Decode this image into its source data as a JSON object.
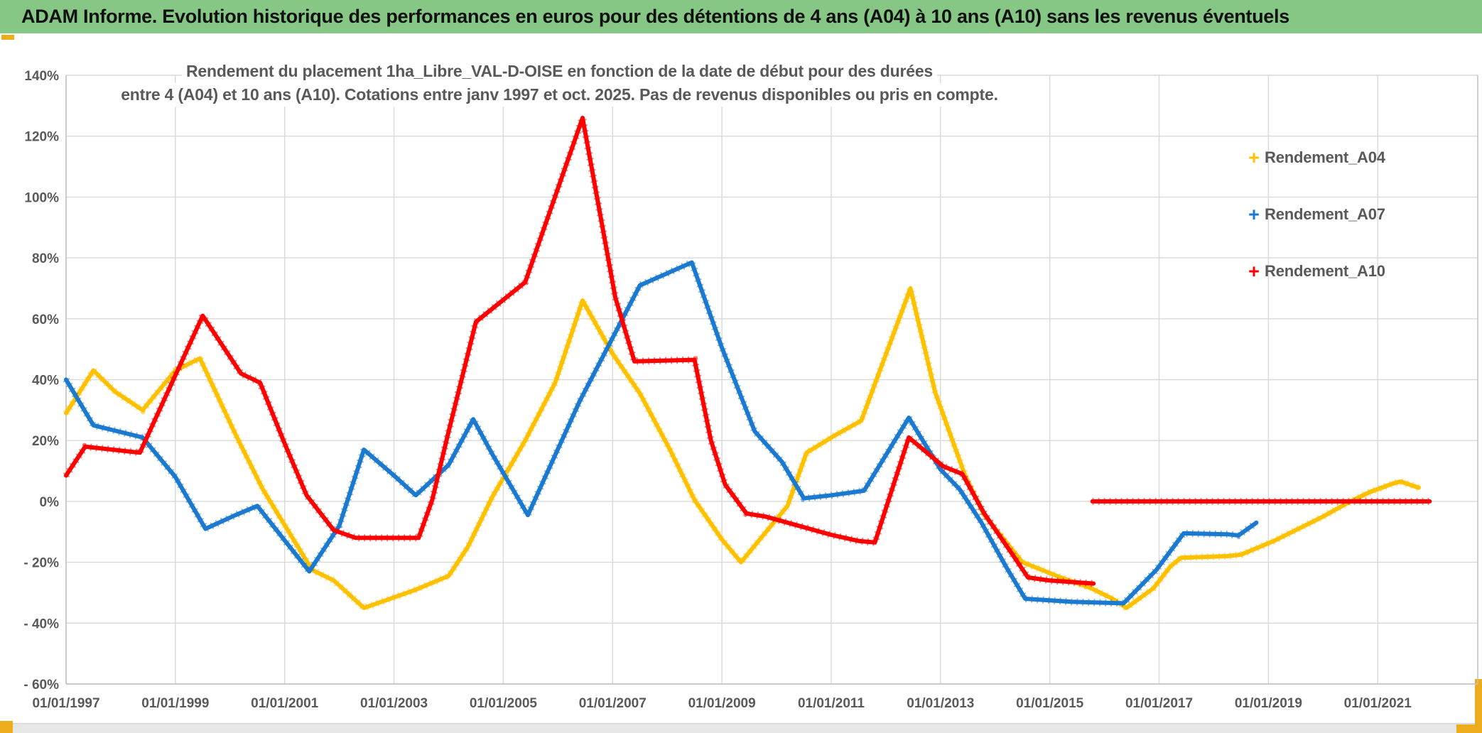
{
  "header": {
    "title": "ADAM Informe. Evolution historique des performances en euros pour des détentions de 4 ans (A04) à 10 ans (A10) sans les revenus éventuels"
  },
  "chart": {
    "title_line1": "Rendement du placement 1ha_Libre_VAL-D-OISE en fonction de la date de début pour des durées",
    "title_line2": "entre 4 (A04) et 10 ans (A10). Cotations entre janv 1997 et oct. 2025. Pas de revenus disponibles ou pris en compte."
  },
  "colors": {
    "header_green": "#86C786",
    "accent_gold": "#ECAC1C",
    "grid": "#D9D9D9",
    "axis": "#BFBFBF",
    "text_gray": "#595959",
    "series_a04": "#FFC000",
    "series_a07": "#1B7AD0",
    "series_a10": "#FF0000"
  },
  "chart_data": {
    "type": "line",
    "title": "Rendement du placement 1ha_Libre_VAL-D-OISE en fonction de la date de début pour des durées entre 4 (A04) et 10 ans (A10). Cotations entre janv 1997 et oct. 2025. Pas de revenus disponibles ou pris en compte.",
    "grid": true,
    "legend_position": "right",
    "x_axis": {
      "range": [
        1997.0,
        2022.83
      ],
      "tick_years": [
        1997,
        1999,
        2001,
        2003,
        2005,
        2007,
        2009,
        2011,
        2013,
        2015,
        2017,
        2019,
        2021
      ],
      "ticks": [
        "01/01/1997",
        "01/01/1999",
        "01/01/2001",
        "01/01/2003",
        "01/01/2005",
        "01/01/2007",
        "01/01/2009",
        "01/01/2011",
        "01/01/2013",
        "01/01/2015",
        "01/01/2017",
        "01/01/2019",
        "01/01/2021"
      ]
    },
    "y_axis": {
      "unit": "%",
      "range": [
        -60,
        140
      ],
      "values": [
        140,
        120,
        100,
        80,
        60,
        40,
        20,
        0,
        -20,
        -40,
        -60
      ],
      "ticks": [
        "140%",
        "120%",
        "100%",
        "80%",
        "60%",
        "40%",
        "20%",
        "0%",
        "- 20%",
        "- 40%",
        "- 60%"
      ]
    },
    "series": [
      {
        "name": "Rendement_A04",
        "color": "#FFC000",
        "marker": "+",
        "segments": [
          [
            [
              1997.0,
              29
            ],
            [
              1997.5,
              43
            ],
            [
              1997.9,
              36
            ],
            [
              1998.4,
              30
            ],
            [
              1999.0,
              43
            ],
            [
              1999.45,
              47
            ],
            [
              2000.1,
              22
            ],
            [
              2000.6,
              4
            ],
            [
              2001.5,
              -22.5
            ],
            [
              2001.9,
              -26
            ],
            [
              2002.45,
              -35
            ],
            [
              2002.85,
              -32.5
            ],
            [
              2003.4,
              -29
            ],
            [
              2004.0,
              -24.5
            ],
            [
              2004.35,
              -15
            ],
            [
              2004.8,
              1.5
            ],
            [
              2005.4,
              20
            ],
            [
              2005.95,
              39
            ],
            [
              2006.45,
              66
            ],
            [
              2007.0,
              48.5
            ],
            [
              2007.5,
              35.5
            ],
            [
              2008.05,
              17
            ],
            [
              2008.5,
              0.5
            ],
            [
              2009.0,
              -12.5
            ],
            [
              2009.35,
              -20
            ],
            [
              2010.2,
              -1.5
            ],
            [
              2010.55,
              16
            ],
            [
              2011.05,
              21.5
            ],
            [
              2011.55,
              26.5
            ],
            [
              2012.45,
              70
            ],
            [
              2012.9,
              36
            ],
            [
              2013.45,
              8.5
            ],
            [
              2013.8,
              -4.5
            ],
            [
              2014.5,
              -20
            ],
            [
              2015.2,
              -25
            ],
            [
              2015.75,
              -28.5
            ],
            [
              2016.15,
              -32
            ],
            [
              2016.4,
              -35
            ],
            [
              2016.9,
              -28.5
            ],
            [
              2017.2,
              -21.5
            ],
            [
              2017.4,
              -18.5
            ],
            [
              2018.25,
              -18
            ],
            [
              2018.5,
              -17.5
            ],
            [
              2019.1,
              -13
            ],
            [
              2020.0,
              -5
            ],
            [
              2020.5,
              0
            ],
            [
              2020.85,
              3
            ],
            [
              2021.3,
              6
            ],
            [
              2021.42,
              6.5
            ],
            [
              2021.75,
              4.5
            ]
          ]
        ]
      },
      {
        "name": "Rendement_A07",
        "color": "#1B7AD0",
        "marker": "+",
        "segments": [
          [
            [
              1997.0,
              40
            ],
            [
              1997.5,
              25
            ],
            [
              1998.4,
              21
            ],
            [
              1999.0,
              8
            ],
            [
              1999.55,
              -9
            ],
            [
              2000.1,
              -4.5
            ],
            [
              2000.5,
              -1.5
            ],
            [
              2001.45,
              -23
            ],
            [
              2002.0,
              -8
            ],
            [
              2002.45,
              17
            ],
            [
              2003.0,
              8.5
            ],
            [
              2003.4,
              2
            ],
            [
              2004.0,
              12
            ],
            [
              2004.45,
              27
            ],
            [
              2004.8,
              15.5
            ],
            [
              2005.45,
              -4.5
            ],
            [
              2006.4,
              33
            ],
            [
              2007.5,
              71
            ],
            [
              2008.45,
              78.5
            ],
            [
              2009.0,
              50.5
            ],
            [
              2009.6,
              23
            ],
            [
              2010.1,
              13
            ],
            [
              2010.5,
              1
            ],
            [
              2011.0,
              2
            ],
            [
              2011.6,
              3.5
            ],
            [
              2012.42,
              27.5
            ],
            [
              2013.0,
              10.5
            ],
            [
              2013.35,
              4
            ],
            [
              2013.75,
              -7
            ],
            [
              2014.2,
              -21.5
            ],
            [
              2014.55,
              -32
            ],
            [
              2015.4,
              -33
            ],
            [
              2016.35,
              -33.5
            ],
            [
              2016.95,
              -22.5
            ],
            [
              2017.45,
              -10.5
            ],
            [
              2018.25,
              -10.8
            ],
            [
              2018.45,
              -11.2
            ],
            [
              2018.78,
              -7
            ]
          ]
        ]
      },
      {
        "name": "Rendement_A10",
        "color": "#FF0000",
        "marker": "+",
        "segments": [
          [
            [
              1997.0,
              8.5
            ],
            [
              1997.35,
              18
            ],
            [
              1998.35,
              16
            ],
            [
              1999.5,
              61
            ],
            [
              2000.2,
              42
            ],
            [
              2000.55,
              39
            ],
            [
              2001.0,
              19
            ],
            [
              2001.4,
              2
            ],
            [
              2001.9,
              -9.5
            ],
            [
              2002.3,
              -12
            ],
            [
              2003.45,
              -12
            ],
            [
              2003.7,
              0.5
            ],
            [
              2004.0,
              23
            ],
            [
              2004.5,
              59
            ],
            [
              2005.4,
              72
            ],
            [
              2006.45,
              126
            ],
            [
              2007.05,
              67
            ],
            [
              2007.4,
              46
            ],
            [
              2008.5,
              46.5
            ],
            [
              2008.8,
              20
            ],
            [
              2009.06,
              5.5
            ],
            [
              2009.45,
              -4
            ],
            [
              2009.8,
              -5
            ],
            [
              2011.0,
              -11
            ],
            [
              2011.5,
              -13
            ],
            [
              2011.8,
              -13.5
            ],
            [
              2012.42,
              21
            ],
            [
              2013.05,
              11.5
            ],
            [
              2013.4,
              9
            ],
            [
              2013.8,
              -4
            ],
            [
              2014.3,
              -17
            ],
            [
              2014.6,
              -25
            ],
            [
              2015.0,
              -26
            ],
            [
              2015.8,
              -27
            ]
          ],
          [
            [
              2015.78,
              0
            ],
            [
              2021.95,
              0
            ]
          ]
        ]
      }
    ]
  }
}
